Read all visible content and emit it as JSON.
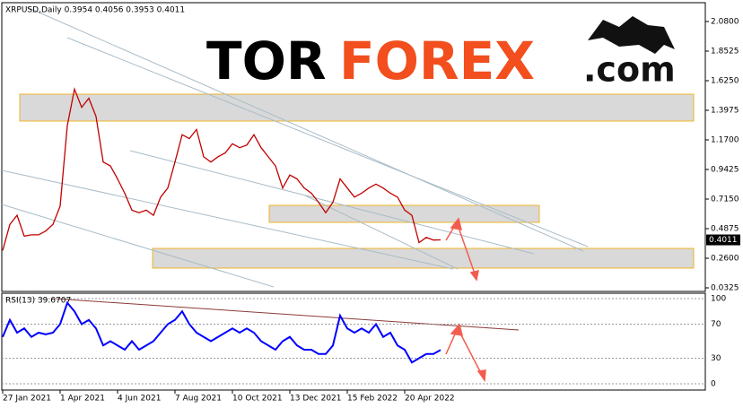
{
  "logo": {
    "part1": "TOR",
    "part2": "FOREX",
    "part3": ".com"
  },
  "chart_data": {
    "type": "line",
    "title": "XRPUSD,Daily  0.3954 0.4056 0.3953 0.4011",
    "categories": [
      "27 Jan 2021",
      null,
      null,
      null,
      null,
      null,
      null,
      null,
      "1 Apr 2021",
      null,
      null,
      null,
      null,
      null,
      null,
      null,
      "4 Jun 2021",
      null,
      null,
      null,
      null,
      null,
      null,
      null,
      "7 Aug 2021",
      null,
      null,
      null,
      null,
      null,
      null,
      null,
      "10 Oct 2021",
      null,
      null,
      null,
      null,
      null,
      null,
      null,
      "13 Dec 2021",
      null,
      null,
      null,
      null,
      null,
      null,
      null,
      "15 Feb 2022",
      null,
      null,
      null,
      null,
      null,
      null,
      null,
      "20 Apr 2022",
      null,
      null,
      null,
      null,
      null
    ],
    "series": [
      {
        "color": "#c00000",
        "values": [
          0.32,
          0.52,
          0.59,
          0.43,
          0.44,
          0.44,
          0.47,
          0.52,
          0.66,
          1.28,
          1.56,
          1.42,
          1.49,
          1.35,
          1.0,
          0.97,
          0.87,
          0.76,
          0.63,
          0.61,
          0.63,
          0.59,
          0.73,
          0.8,
          1.0,
          1.21,
          1.18,
          1.25,
          1.04,
          1.0,
          1.04,
          1.07,
          1.14,
          1.11,
          1.13,
          1.21,
          1.11,
          1.04,
          0.97,
          0.8,
          0.9,
          0.87,
          0.8,
          0.76,
          0.69,
          0.61,
          0.69,
          0.87,
          0.8,
          0.73,
          0.76,
          0.8,
          0.83,
          0.8,
          0.76,
          0.73,
          0.63,
          0.59,
          0.38,
          0.42,
          0.4,
          0.4011
        ]
      }
    ],
    "ylim": [
      0.0049,
      2.2248
    ],
    "yticks": [
      {
        "value": 2.08,
        "label": "2.0800"
      },
      {
        "value": 1.8525,
        "label": "1.8525"
      },
      {
        "value": 1.625,
        "label": "1.6250"
      },
      {
        "value": 1.3975,
        "label": "1.3975"
      },
      {
        "value": 1.17,
        "label": "1.1700"
      },
      {
        "value": 0.9425,
        "label": "0.9425"
      },
      {
        "value": 0.715,
        "label": "0.7150"
      },
      {
        "value": 0.4875,
        "label": "0.4875"
      },
      {
        "value": 0.26,
        "label": "0.2600"
      },
      {
        "value": 0.0325,
        "label": "0.0325"
      }
    ],
    "rsi": {
      "title": "RSI(13) 39.6707",
      "color": "#0000ff",
      "values": [
        55,
        75,
        60,
        65,
        55,
        60,
        58,
        60,
        70,
        95,
        85,
        70,
        75,
        65,
        45,
        50,
        45,
        40,
        50,
        40,
        45,
        50,
        60,
        70,
        75,
        85,
        70,
        60,
        55,
        50,
        55,
        60,
        65,
        60,
        65,
        60,
        50,
        45,
        40,
        50,
        55,
        45,
        40,
        40,
        35,
        35,
        45,
        80,
        65,
        60,
        65,
        60,
        70,
        55,
        60,
        45,
        40,
        25,
        30,
        35,
        35,
        39.6707
      ],
      "ylim": [
        -7.4,
        106.3
      ],
      "yticks": [
        100,
        70,
        30,
        0
      ]
    }
  }
}
